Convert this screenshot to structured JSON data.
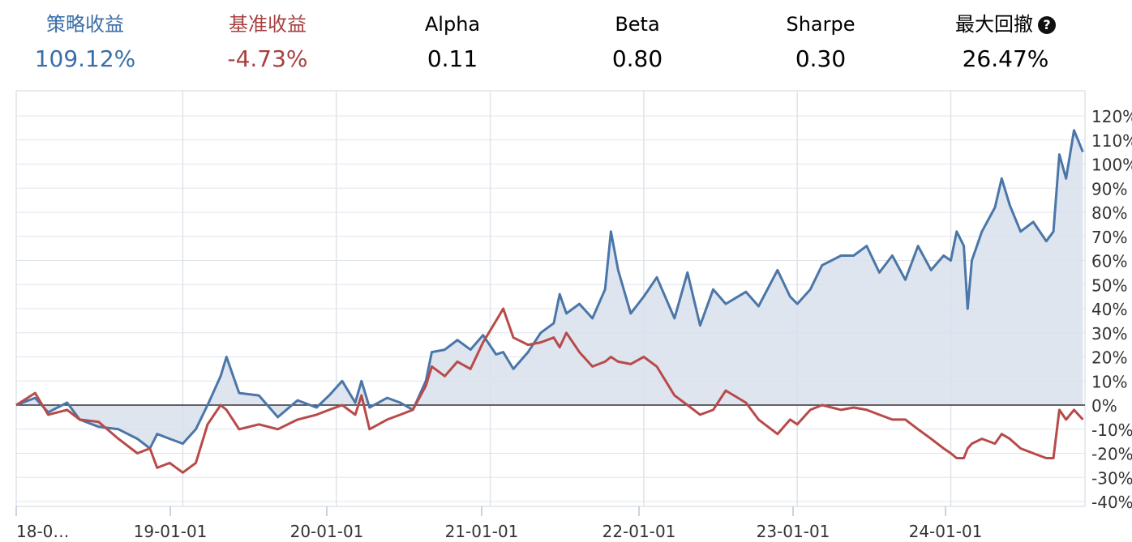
{
  "metrics": {
    "strategy_return": {
      "label": "策略收益",
      "value": "109.12%",
      "color": "#3a6ea8"
    },
    "benchmark_return": {
      "label": "基准收益",
      "value": "-4.73%",
      "color": "#a84040"
    },
    "alpha": {
      "label": "Alpha",
      "value": "0.11"
    },
    "beta": {
      "label": "Beta",
      "value": "0.80"
    },
    "sharpe": {
      "label": "Sharpe",
      "value": "0.30"
    },
    "max_drawdown": {
      "label": "最大回撤",
      "value": "26.47%",
      "icon": "help-icon"
    }
  },
  "chart_data": {
    "type": "line",
    "x_tick_labels": [
      "18-0…",
      "19-01-01",
      "20-01-01",
      "21-01-01",
      "22-01-01",
      "23-01-01",
      "24-01-01"
    ],
    "y_tick_labels": [
      "120%",
      "110%",
      "100%",
      "90%",
      "80%",
      "70%",
      "60%",
      "50%",
      "40%",
      "30%",
      "20%",
      "10%",
      "0%",
      "-10%",
      "-20%",
      "-30%",
      "-40%"
    ],
    "ylim": [
      -45,
      125
    ],
    "grid": true,
    "series": [
      {
        "name": "策略收益",
        "color": "#4a76a8",
        "fill": "#d8e1ec",
        "points": [
          [
            "2017-12-01",
            0
          ],
          [
            "2018-01-15",
            3
          ],
          [
            "2018-02-15",
            -3
          ],
          [
            "2018-04-01",
            1
          ],
          [
            "2018-05-01",
            -6
          ],
          [
            "2018-06-15",
            -9
          ],
          [
            "2018-08-01",
            -10
          ],
          [
            "2018-09-15",
            -14
          ],
          [
            "2018-10-15",
            -18
          ],
          [
            "2018-11-01",
            -12
          ],
          [
            "2018-12-01",
            -14
          ],
          [
            "2019-01-01",
            -16
          ],
          [
            "2019-02-01",
            -10
          ],
          [
            "2019-03-01",
            0
          ],
          [
            "2019-04-01",
            12
          ],
          [
            "2019-04-15",
            20
          ],
          [
            "2019-05-15",
            5
          ],
          [
            "2019-07-01",
            4
          ],
          [
            "2019-08-15",
            -5
          ],
          [
            "2019-10-01",
            2
          ],
          [
            "2019-11-15",
            -1
          ],
          [
            "2019-12-15",
            4
          ],
          [
            "2020-01-15",
            10
          ],
          [
            "2020-02-15",
            1
          ],
          [
            "2020-03-01",
            10
          ],
          [
            "2020-03-20",
            -1
          ],
          [
            "2020-05-01",
            3
          ],
          [
            "2020-06-01",
            1
          ],
          [
            "2020-07-01",
            -2
          ],
          [
            "2020-08-01",
            10
          ],
          [
            "2020-08-15",
            22
          ],
          [
            "2020-09-15",
            23
          ],
          [
            "2020-10-15",
            27
          ],
          [
            "2020-11-15",
            23
          ],
          [
            "2020-12-15",
            29
          ],
          [
            "2021-01-15",
            21
          ],
          [
            "2021-02-01",
            22
          ],
          [
            "2021-02-25",
            15
          ],
          [
            "2021-04-01",
            22
          ],
          [
            "2021-05-01",
            30
          ],
          [
            "2021-06-01",
            34
          ],
          [
            "2021-06-15",
            46
          ],
          [
            "2021-07-01",
            38
          ],
          [
            "2021-08-01",
            42
          ],
          [
            "2021-09-01",
            36
          ],
          [
            "2021-10-01",
            48
          ],
          [
            "2021-10-15",
            72
          ],
          [
            "2021-11-01",
            56
          ],
          [
            "2021-12-01",
            38
          ],
          [
            "2022-01-01",
            45
          ],
          [
            "2022-02-01",
            53
          ],
          [
            "2022-03-15",
            36
          ],
          [
            "2022-04-15",
            55
          ],
          [
            "2022-05-15",
            33
          ],
          [
            "2022-06-15",
            48
          ],
          [
            "2022-07-15",
            42
          ],
          [
            "2022-09-01",
            47
          ],
          [
            "2022-10-01",
            41
          ],
          [
            "2022-11-15",
            56
          ],
          [
            "2022-12-15",
            45
          ],
          [
            "2023-01-01",
            42
          ],
          [
            "2023-02-01",
            48
          ],
          [
            "2023-03-01",
            58
          ],
          [
            "2023-04-15",
            62
          ],
          [
            "2023-05-15",
            62
          ],
          [
            "2023-06-15",
            66
          ],
          [
            "2023-07-15",
            55
          ],
          [
            "2023-08-15",
            62
          ],
          [
            "2023-09-15",
            52
          ],
          [
            "2023-10-15",
            66
          ],
          [
            "2023-11-15",
            56
          ],
          [
            "2023-12-15",
            62
          ],
          [
            "2024-01-01",
            60
          ],
          [
            "2024-01-15",
            72
          ],
          [
            "2024-02-01",
            66
          ],
          [
            "2024-02-10",
            40
          ],
          [
            "2024-02-20",
            60
          ],
          [
            "2024-03-15",
            72
          ],
          [
            "2024-04-15",
            82
          ],
          [
            "2024-05-01",
            94
          ],
          [
            "2024-05-20",
            83
          ],
          [
            "2024-06-15",
            72
          ],
          [
            "2024-07-15",
            76
          ],
          [
            "2024-08-15",
            68
          ],
          [
            "2024-09-01",
            72
          ],
          [
            "2024-09-15",
            104
          ],
          [
            "2024-10-01",
            94
          ],
          [
            "2024-10-20",
            114
          ],
          [
            "2024-11-10",
            105
          ]
        ]
      },
      {
        "name": "基准收益",
        "color": "#b84a4a",
        "points": [
          [
            "2017-12-01",
            0
          ],
          [
            "2018-01-15",
            5
          ],
          [
            "2018-02-15",
            -4
          ],
          [
            "2018-04-01",
            -2
          ],
          [
            "2018-05-01",
            -6
          ],
          [
            "2018-06-15",
            -7
          ],
          [
            "2018-08-01",
            -14
          ],
          [
            "2018-09-15",
            -20
          ],
          [
            "2018-10-15",
            -18
          ],
          [
            "2018-11-01",
            -26
          ],
          [
            "2018-12-01",
            -24
          ],
          [
            "2019-01-01",
            -28
          ],
          [
            "2019-02-01",
            -24
          ],
          [
            "2019-03-01",
            -8
          ],
          [
            "2019-04-01",
            0
          ],
          [
            "2019-04-15",
            -2
          ],
          [
            "2019-05-15",
            -10
          ],
          [
            "2019-07-01",
            -8
          ],
          [
            "2019-08-15",
            -10
          ],
          [
            "2019-10-01",
            -6
          ],
          [
            "2019-11-15",
            -4
          ],
          [
            "2019-12-15",
            -2
          ],
          [
            "2020-01-15",
            0
          ],
          [
            "2020-02-15",
            -4
          ],
          [
            "2020-03-01",
            4
          ],
          [
            "2020-03-20",
            -10
          ],
          [
            "2020-05-01",
            -6
          ],
          [
            "2020-06-01",
            -4
          ],
          [
            "2020-07-01",
            -2
          ],
          [
            "2020-08-01",
            8
          ],
          [
            "2020-08-15",
            16
          ],
          [
            "2020-09-15",
            12
          ],
          [
            "2020-10-15",
            18
          ],
          [
            "2020-11-15",
            15
          ],
          [
            "2020-12-15",
            26
          ],
          [
            "2021-01-15",
            35
          ],
          [
            "2021-02-01",
            40
          ],
          [
            "2021-02-25",
            28
          ],
          [
            "2021-04-01",
            25
          ],
          [
            "2021-05-01",
            26
          ],
          [
            "2021-06-01",
            28
          ],
          [
            "2021-06-15",
            24
          ],
          [
            "2021-07-01",
            30
          ],
          [
            "2021-08-01",
            22
          ],
          [
            "2021-09-01",
            16
          ],
          [
            "2021-10-01",
            18
          ],
          [
            "2021-10-15",
            20
          ],
          [
            "2021-11-01",
            18
          ],
          [
            "2021-12-01",
            17
          ],
          [
            "2022-01-01",
            20
          ],
          [
            "2022-02-01",
            16
          ],
          [
            "2022-03-15",
            4
          ],
          [
            "2022-04-15",
            0
          ],
          [
            "2022-05-15",
            -4
          ],
          [
            "2022-06-15",
            -2
          ],
          [
            "2022-07-15",
            6
          ],
          [
            "2022-09-01",
            1
          ],
          [
            "2022-10-01",
            -6
          ],
          [
            "2022-11-15",
            -12
          ],
          [
            "2022-12-15",
            -6
          ],
          [
            "2023-01-01",
            -8
          ],
          [
            "2023-02-01",
            -2
          ],
          [
            "2023-03-01",
            0
          ],
          [
            "2023-04-15",
            -2
          ],
          [
            "2023-05-15",
            -1
          ],
          [
            "2023-06-15",
            -2
          ],
          [
            "2023-07-15",
            -4
          ],
          [
            "2023-08-15",
            -6
          ],
          [
            "2023-09-15",
            -6
          ],
          [
            "2023-10-15",
            -10
          ],
          [
            "2023-11-15",
            -14
          ],
          [
            "2023-12-15",
            -18
          ],
          [
            "2024-01-01",
            -20
          ],
          [
            "2024-01-15",
            -22
          ],
          [
            "2024-02-01",
            -22
          ],
          [
            "2024-02-10",
            -18
          ],
          [
            "2024-02-20",
            -16
          ],
          [
            "2024-03-15",
            -14
          ],
          [
            "2024-04-15",
            -16
          ],
          [
            "2024-05-01",
            -12
          ],
          [
            "2024-05-20",
            -14
          ],
          [
            "2024-06-15",
            -18
          ],
          [
            "2024-07-15",
            -20
          ],
          [
            "2024-08-15",
            -22
          ],
          [
            "2024-09-01",
            -22
          ],
          [
            "2024-09-15",
            -2
          ],
          [
            "2024-10-01",
            -6
          ],
          [
            "2024-10-20",
            -2
          ],
          [
            "2024-11-10",
            -6
          ]
        ]
      }
    ]
  }
}
